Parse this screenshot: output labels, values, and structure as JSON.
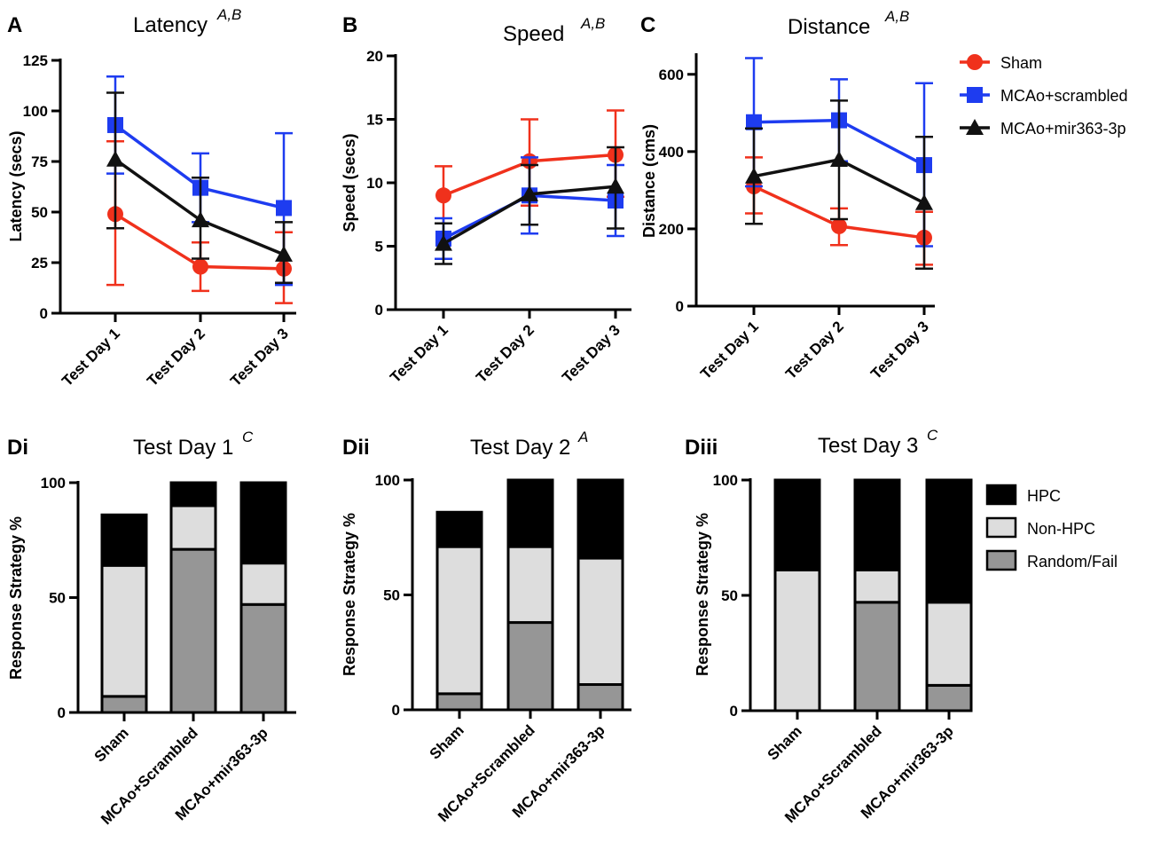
{
  "colors": {
    "sham": "#f0311c",
    "scrambled": "#1e3cf0",
    "mir": "#111111",
    "hpc": "#000000",
    "nonhpc": "#dddddd",
    "random": "#969696"
  },
  "line_legend": [
    {
      "label": "Sham",
      "key": "sham",
      "marker": "circle"
    },
    {
      "label": "MCAo+scrambled",
      "key": "scrambled",
      "marker": "square"
    },
    {
      "label": "MCAo+mir363-3p",
      "key": "mir",
      "marker": "triangle"
    }
  ],
  "bar_legend": [
    {
      "label": "HPC",
      "key": "hpc"
    },
    {
      "label": "Non-HPC",
      "key": "nonhpc"
    },
    {
      "label": "Random/Fail",
      "key": "random"
    }
  ],
  "chart_data": [
    {
      "panel": "A",
      "type": "line",
      "title": "Latency",
      "title_sup": "A,B",
      "ylabel": "Latency (secs)",
      "ylim": [
        0,
        125
      ],
      "yticks": [
        0,
        25,
        50,
        75,
        100,
        125
      ],
      "categories": [
        "Test Day 1",
        "Test Day 2",
        "Test Day 3"
      ],
      "series": [
        {
          "name": "Sham",
          "key": "sham",
          "marker": "circle",
          "values": [
            49,
            23,
            22
          ],
          "err_low": [
            14,
            11,
            5
          ],
          "err_high": [
            85,
            35,
            40
          ]
        },
        {
          "name": "MCAo+scrambled",
          "key": "scrambled",
          "marker": "square",
          "values": [
            93,
            62,
            52
          ],
          "err_low": [
            69,
            45,
            14
          ],
          "err_high": [
            117,
            79,
            89
          ]
        },
        {
          "name": "MCAo+mir363-3p",
          "key": "mir",
          "marker": "triangle",
          "values": [
            76,
            46,
            29
          ],
          "err_low": [
            42,
            27,
            15
          ],
          "err_high": [
            109,
            67,
            45
          ]
        }
      ]
    },
    {
      "panel": "B",
      "type": "line",
      "title": "Speed",
      "title_sup": "A,B",
      "ylabel": "Speed (secs)",
      "ylim": [
        0,
        20
      ],
      "yticks": [
        0,
        5,
        10,
        15,
        20
      ],
      "categories": [
        "Test Day 1",
        "Test Day 2",
        "Test Day 3"
      ],
      "series": [
        {
          "name": "Sham",
          "key": "sham",
          "marker": "circle",
          "values": [
            9,
            11.7,
            12.2
          ],
          "err_low": [
            6.8,
            8.2,
            8.9
          ],
          "err_high": [
            11.3,
            15,
            15.7
          ]
        },
        {
          "name": "MCAo+scrambled",
          "key": "scrambled",
          "marker": "square",
          "values": [
            5.6,
            9,
            8.6
          ],
          "err_low": [
            4,
            6,
            5.8
          ],
          "err_high": [
            7.2,
            12,
            11.4
          ]
        },
        {
          "name": "MCAo+mir363-3p",
          "key": "mir",
          "marker": "triangle",
          "values": [
            5.2,
            9.1,
            9.7
          ],
          "err_low": [
            3.6,
            6.7,
            6.4
          ],
          "err_high": [
            6.8,
            11.4,
            12.8
          ]
        }
      ]
    },
    {
      "panel": "C",
      "type": "line",
      "title": "Distance",
      "title_sup": "A,B",
      "ylabel": "Distance (cms)",
      "ylim": [
        0,
        650
      ],
      "yticks": [
        0,
        200,
        400,
        600
      ],
      "categories": [
        "Test Day 1",
        "Test Day 2",
        "Test Day 3"
      ],
      "series": [
        {
          "name": "Sham",
          "key": "sham",
          "marker": "circle",
          "values": [
            310,
            207,
            177
          ],
          "err_low": [
            240,
            158,
            107
          ],
          "err_high": [
            385,
            253,
            244
          ]
        },
        {
          "name": "MCAo+scrambled",
          "key": "scrambled",
          "marker": "square",
          "values": [
            476,
            481,
            365
          ],
          "err_low": [
            310,
            375,
            155
          ],
          "err_high": [
            642,
            587,
            577
          ]
        },
        {
          "name": "MCAo+mir363-3p",
          "key": "mir",
          "marker": "triangle",
          "values": [
            336,
            379,
            267
          ],
          "err_low": [
            213,
            225,
            97
          ],
          "err_high": [
            460,
            532,
            438
          ]
        }
      ]
    },
    {
      "panel": "Di",
      "type": "bar",
      "stacked": true,
      "title": "Test Day 1",
      "title_sup": "C",
      "ylabel": "Response Strategy %",
      "ylim": [
        0,
        100
      ],
      "yticks": [
        0,
        50,
        100
      ],
      "categories": [
        "Sham",
        "MCAo+Scrambled",
        "MCAo+mir363-3p"
      ],
      "series": [
        {
          "name": "Random/Fail",
          "key": "random",
          "values": [
            7,
            71,
            47
          ]
        },
        {
          "name": "Non-HPC",
          "key": "nonhpc",
          "values": [
            57,
            19,
            18
          ]
        },
        {
          "name": "HPC",
          "key": "hpc",
          "values": [
            22,
            10,
            35
          ]
        }
      ]
    },
    {
      "panel": "Dii",
      "type": "bar",
      "stacked": true,
      "title": "Test Day 2",
      "title_sup": "A",
      "ylabel": "Response Strategy %",
      "ylim": [
        0,
        100
      ],
      "yticks": [
        0,
        50,
        100
      ],
      "categories": [
        "Sham",
        "MCAo+Scrambled",
        "MCAo+mir363-3p"
      ],
      "series": [
        {
          "name": "Random/Fail",
          "key": "random",
          "values": [
            7,
            38,
            11
          ]
        },
        {
          "name": "Non-HPC",
          "key": "nonhpc",
          "values": [
            64,
            33,
            55
          ]
        },
        {
          "name": "HPC",
          "key": "hpc",
          "values": [
            15,
            29,
            34
          ]
        }
      ]
    },
    {
      "panel": "Diii",
      "type": "bar",
      "stacked": true,
      "title": "Test Day 3",
      "title_sup": "C",
      "ylabel": "Response Strategy %",
      "ylim": [
        0,
        100
      ],
      "yticks": [
        0,
        50,
        100
      ],
      "categories": [
        "Sham",
        "MCAo+Scrambled",
        "MCAo+mir363-3p"
      ],
      "series": [
        {
          "name": "Random/Fail",
          "key": "random",
          "values": [
            0,
            47,
            11
          ]
        },
        {
          "name": "Non-HPC",
          "key": "nonhpc",
          "values": [
            61,
            14,
            36
          ]
        },
        {
          "name": "HPC",
          "key": "hpc",
          "values": [
            39,
            39,
            53
          ]
        }
      ]
    }
  ]
}
